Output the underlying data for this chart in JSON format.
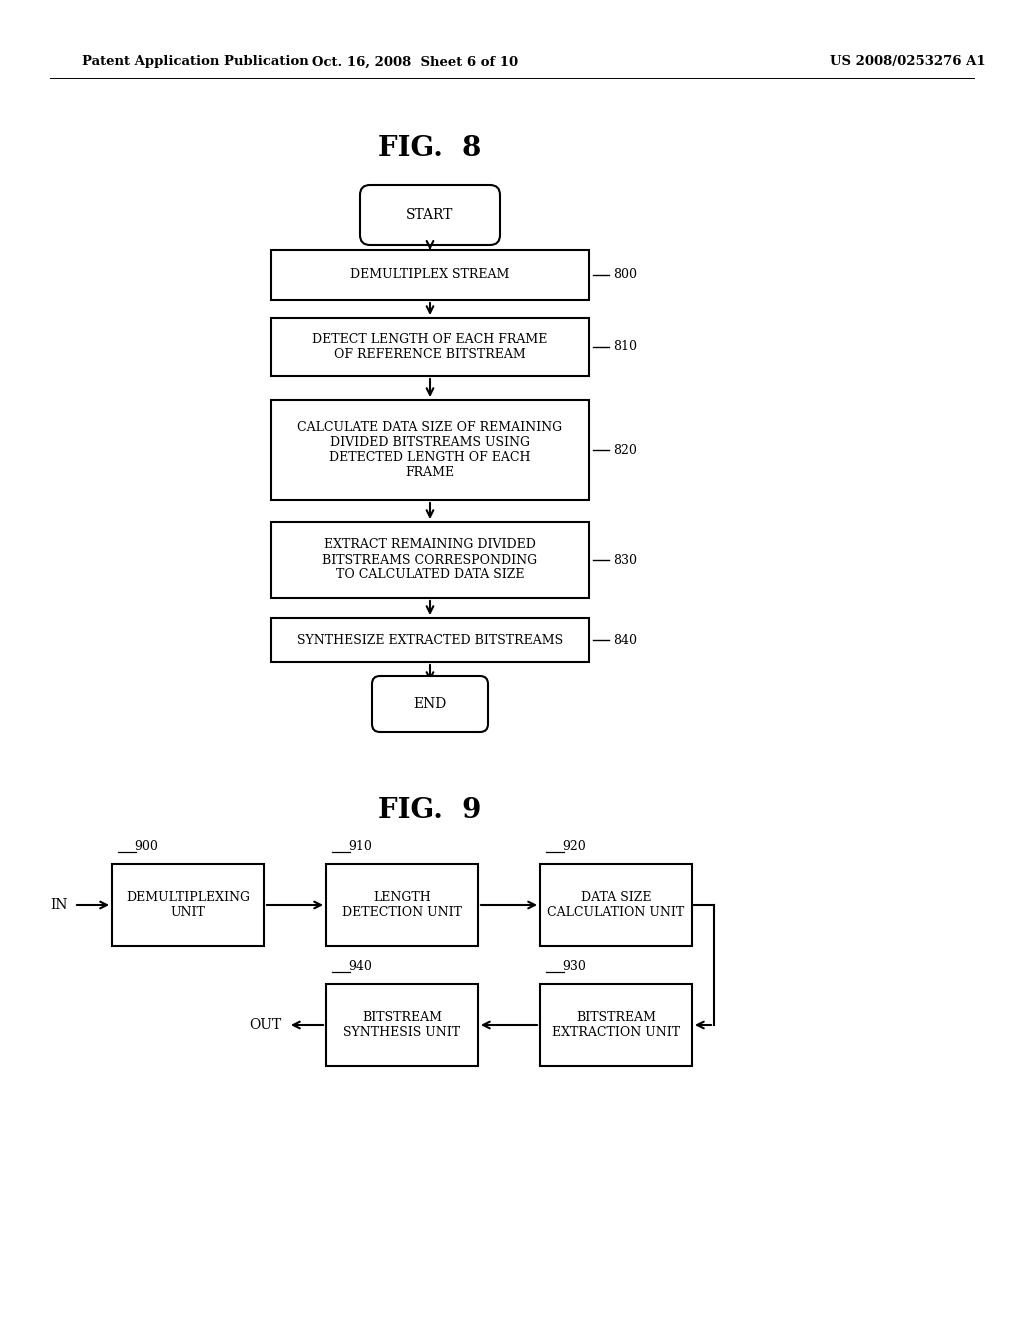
{
  "bg_color": "#ffffff",
  "header_left": "Patent Application Publication",
  "header_mid": "Oct. 16, 2008  Sheet 6 of 10",
  "header_right": "US 2008/0253276 A1",
  "fig8_title": "FIG.  8",
  "fig9_title": "FIG.  9",
  "fig8_start_label": "START",
  "fig8_end_label": "END",
  "fig8_boxes": [
    {
      "label": "DEMULTIPLEX STREAM",
      "tag": "800"
    },
    {
      "label": "DETECT LENGTH OF EACH FRAME\nOF REFERENCE BITSTREAM",
      "tag": "810"
    },
    {
      "label": "CALCULATE DATA SIZE OF REMAINING\nDIVIDED BITSTREAMS USING\nDETECTED LENGTH OF EACH\nFRAME",
      "tag": "820"
    },
    {
      "label": "EXTRACT REMAINING DIVIDED\nBITSTREAMS CORRESPONDING\nTO CALCULATED DATA SIZE",
      "tag": "830"
    },
    {
      "label": "SYNTHESIZE EXTRACTED BITSTREAMS",
      "tag": "840"
    }
  ],
  "fig9_boxes": [
    {
      "label": "DEMULTIPLEXING\nUNIT",
      "tag": "900"
    },
    {
      "label": "LENGTH\nDETECTION UNIT",
      "tag": "910"
    },
    {
      "label": "DATA SIZE\nCALCULATION UNIT",
      "tag": "920"
    },
    {
      "label": "BITSTREAM\nEXTRACTION UNIT",
      "tag": "930"
    },
    {
      "label": "BITSTREAM\nSYNTHESIS UNIT",
      "tag": "940"
    }
  ]
}
